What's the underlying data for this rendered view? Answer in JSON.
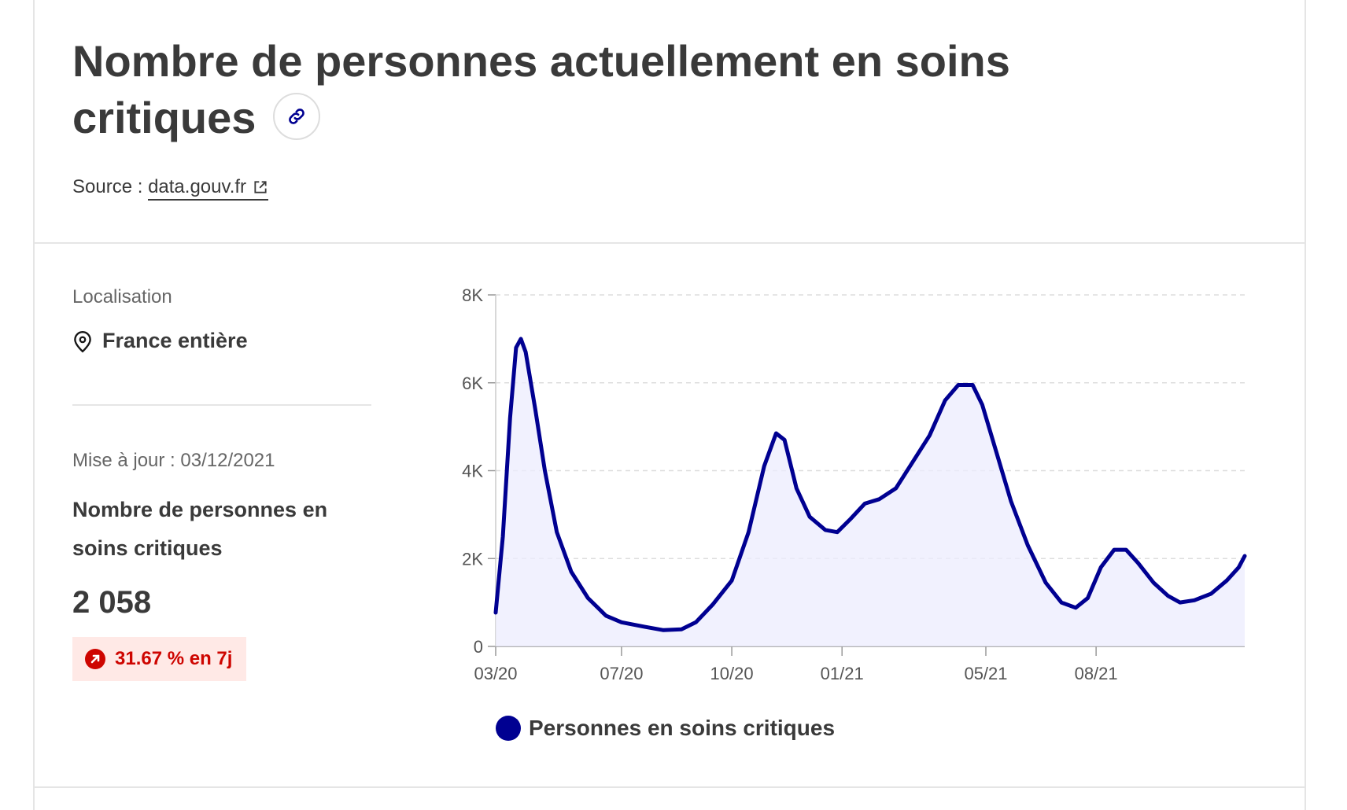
{
  "header": {
    "title": "Nombre de personnes actuellement en soins critiques",
    "source_label": "Source :",
    "source_link": "data.gouv.fr"
  },
  "sidebar": {
    "location_label": "Localisation",
    "location_value": "France entière",
    "update_text": "Mise à jour : 03/12/2021",
    "metric_label": "Nombre de personnes en soins critiques",
    "metric_value": "2 058",
    "trend_text": "31.67 % en 7j"
  },
  "colors": {
    "series": "#000091",
    "series_fill": "#ececfe",
    "trend": "#ce0500"
  },
  "icons": {
    "title_link": "link-icon",
    "external": "external-link-icon",
    "location": "map-pin-icon",
    "trend": "arrow-up-right-icon"
  },
  "chart_data": {
    "type": "area",
    "title": "",
    "xlabel": "",
    "ylabel": "",
    "ylim": [
      0,
      8000
    ],
    "yticks": [
      0,
      2000,
      4000,
      6000,
      8000
    ],
    "ytick_labels": [
      "0",
      "2K",
      "4K",
      "6K",
      "8K"
    ],
    "xticks": [
      "2020-03-18",
      "2020-07-01",
      "2020-10-01",
      "2021-01-01",
      "2021-05-01",
      "2021-08-01"
    ],
    "xtick_labels": [
      "03/20",
      "07/20",
      "10/20",
      "01/21",
      "05/21",
      "08/21"
    ],
    "grid": "horizontal-dashed",
    "legend_position": "bottom",
    "series": [
      {
        "name": "Personnes en soins critiques",
        "points": [
          [
            "2020-03-18",
            770
          ],
          [
            "2020-03-24",
            2500
          ],
          [
            "2020-03-30",
            5200
          ],
          [
            "2020-04-04",
            6800
          ],
          [
            "2020-04-08",
            7000
          ],
          [
            "2020-04-12",
            6700
          ],
          [
            "2020-04-20",
            5400
          ],
          [
            "2020-04-28",
            4000
          ],
          [
            "2020-05-08",
            2600
          ],
          [
            "2020-05-20",
            1700
          ],
          [
            "2020-06-03",
            1100
          ],
          [
            "2020-06-18",
            700
          ],
          [
            "2020-07-01",
            550
          ],
          [
            "2020-07-20",
            450
          ],
          [
            "2020-08-05",
            370
          ],
          [
            "2020-08-20",
            390
          ],
          [
            "2020-09-01",
            550
          ],
          [
            "2020-09-15",
            950
          ],
          [
            "2020-10-01",
            1500
          ],
          [
            "2020-10-15",
            2600
          ],
          [
            "2020-10-28",
            4100
          ],
          [
            "2020-11-07",
            4850
          ],
          [
            "2020-11-14",
            4700
          ],
          [
            "2020-11-24",
            3600
          ],
          [
            "2020-12-05",
            2950
          ],
          [
            "2020-12-18",
            2650
          ],
          [
            "2020-12-28",
            2600
          ],
          [
            "2021-01-08",
            2900
          ],
          [
            "2021-01-20",
            3250
          ],
          [
            "2021-02-01",
            3350
          ],
          [
            "2021-02-15",
            3600
          ],
          [
            "2021-03-01",
            4200
          ],
          [
            "2021-03-15",
            4800
          ],
          [
            "2021-03-28",
            5600
          ],
          [
            "2021-04-08",
            5950
          ],
          [
            "2021-04-20",
            5950
          ],
          [
            "2021-04-28",
            5500
          ],
          [
            "2021-05-10",
            4400
          ],
          [
            "2021-05-22",
            3300
          ],
          [
            "2021-06-05",
            2300
          ],
          [
            "2021-06-20",
            1450
          ],
          [
            "2021-07-03",
            1000
          ],
          [
            "2021-07-15",
            880
          ],
          [
            "2021-07-25",
            1100
          ],
          [
            "2021-08-05",
            1800
          ],
          [
            "2021-08-16",
            2200
          ],
          [
            "2021-08-26",
            2200
          ],
          [
            "2021-09-05",
            1900
          ],
          [
            "2021-09-18",
            1450
          ],
          [
            "2021-09-30",
            1150
          ],
          [
            "2021-10-10",
            1000
          ],
          [
            "2021-10-22",
            1050
          ],
          [
            "2021-11-05",
            1200
          ],
          [
            "2021-11-18",
            1500
          ],
          [
            "2021-11-28",
            1800
          ],
          [
            "2021-12-03",
            2058
          ]
        ]
      }
    ]
  }
}
